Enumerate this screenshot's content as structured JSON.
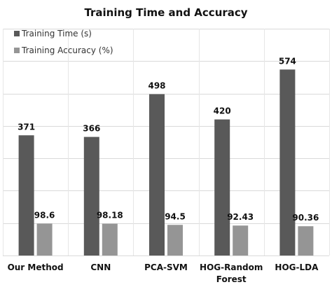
{
  "chart_data": {
    "type": "bar",
    "title": "Training Time and Accuracy",
    "categories": [
      "Our Method",
      "CNN",
      "PCA-SVM",
      "HOG-Random Forest",
      "HOG-LDA"
    ],
    "category_lines": [
      [
        "Our Method"
      ],
      [
        "CNN"
      ],
      [
        "PCA-SVM"
      ],
      [
        "HOG-Random",
        "Forest"
      ],
      [
        "HOG-LDA"
      ]
    ],
    "series": [
      {
        "name": "Training Time (s)",
        "values": [
          371,
          366,
          498,
          420,
          574
        ],
        "labels": [
          "371",
          "366",
          "498",
          "420",
          "574"
        ],
        "color": "#595959"
      },
      {
        "name": "Training Accuracy (%)",
        "values": [
          98.6,
          98.18,
          94.5,
          92.43,
          90.36
        ],
        "labels": [
          "98.6",
          "98.18",
          "94.5",
          "92.43",
          "90.36"
        ],
        "color": "#959595"
      }
    ],
    "ylim": [
      0,
      700
    ],
    "grid": true,
    "legend_position": "top-left",
    "xlabel": "",
    "ylabel": ""
  }
}
